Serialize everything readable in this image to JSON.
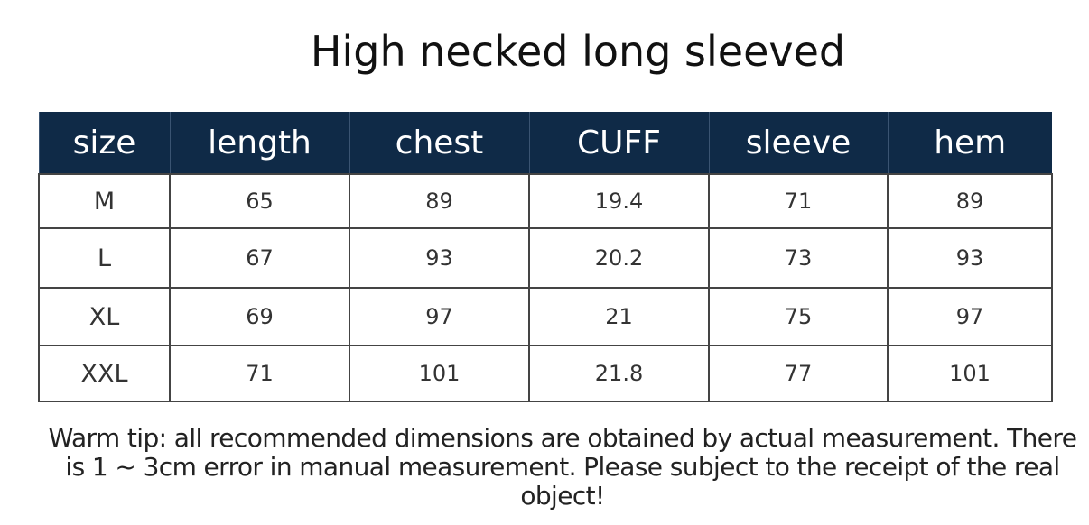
{
  "title": "High necked long sleeved",
  "table": {
    "headers": [
      "size",
      "length",
      "chest",
      "CUFF",
      "sleeve",
      "hem"
    ],
    "rows": [
      [
        "M",
        "65",
        "89",
        "19.4",
        "71",
        "89"
      ],
      [
        "L",
        "67",
        "93",
        "20.2",
        "73",
        "93"
      ],
      [
        "XL",
        "69",
        "97",
        "21",
        "75",
        "97"
      ],
      [
        "XXL",
        "71",
        "101",
        "21.8",
        "77",
        "101"
      ]
    ]
  },
  "tip": "Warm tip: all recommended dimensions are obtained by actual measurement. There is 1 ~ 3cm error in manual measurement. Please subject to the receipt of the real object!",
  "colors": {
    "header_bg": "#0f2a47",
    "header_text": "#ffffff"
  }
}
